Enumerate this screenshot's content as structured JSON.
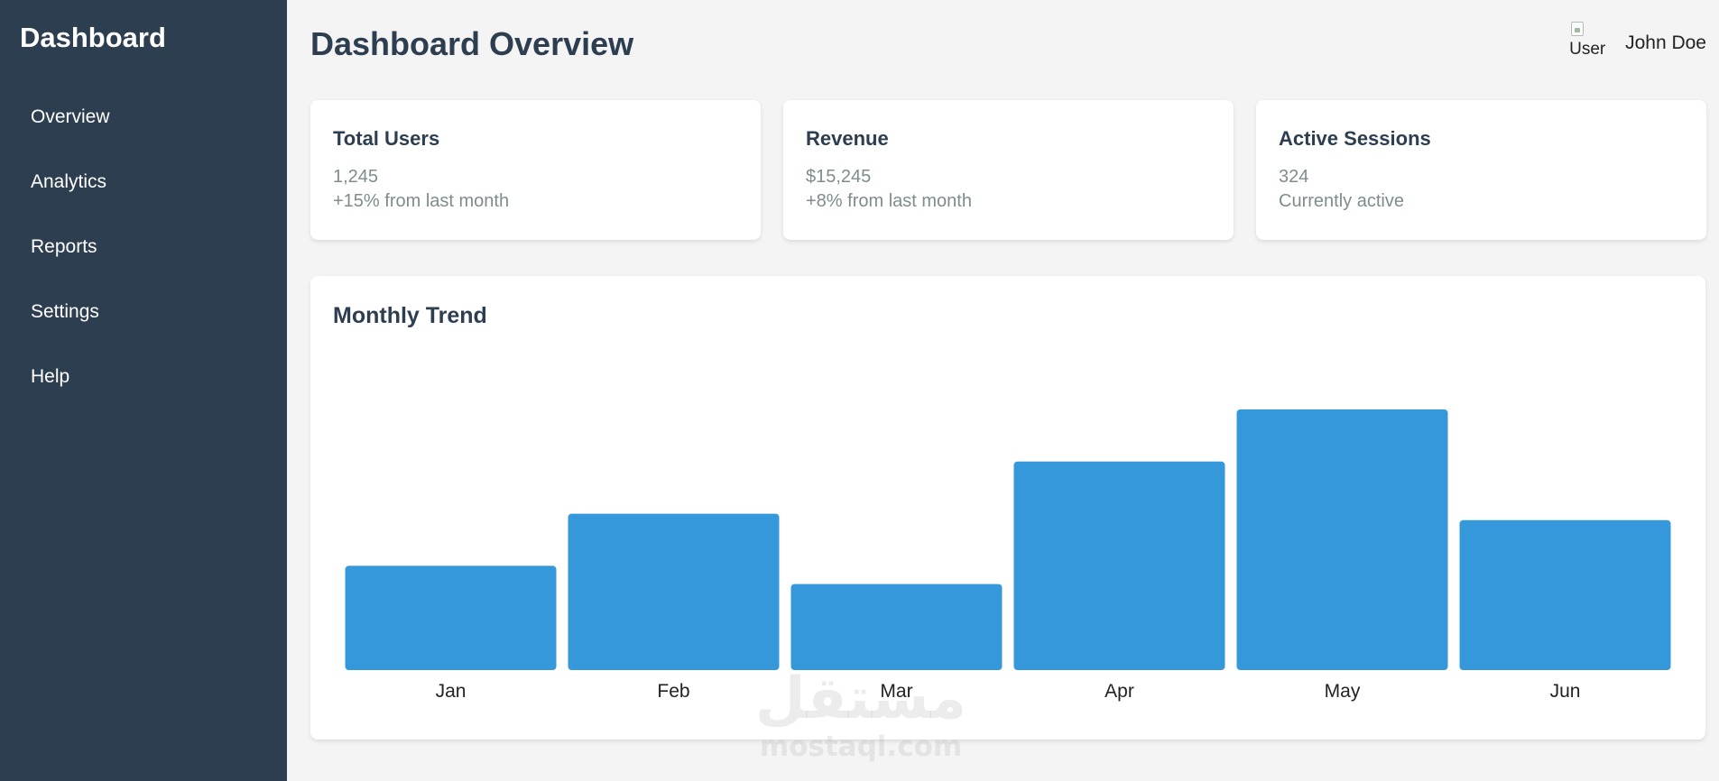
{
  "sidebar": {
    "brand": "Dashboard",
    "items": [
      {
        "label": "Overview"
      },
      {
        "label": "Analytics"
      },
      {
        "label": "Reports"
      },
      {
        "label": "Settings"
      },
      {
        "label": "Help"
      }
    ]
  },
  "header": {
    "title": "Dashboard Overview",
    "avatar_alt": "User",
    "user_name": "John Doe"
  },
  "stats": [
    {
      "title": "Total Users",
      "value": "1,245",
      "note": "+15% from last month"
    },
    {
      "title": "Revenue",
      "value": "$15,245",
      "note": "+8% from last month"
    },
    {
      "title": "Active Sessions",
      "value": "324",
      "note": "Currently active"
    }
  ],
  "chart_section": {
    "title": "Monthly Trend"
  },
  "chart_data": {
    "type": "bar",
    "title": "Monthly Trend",
    "categories": [
      "Jan",
      "Feb",
      "Mar",
      "Apr",
      "May",
      "Jun"
    ],
    "values": [
      40,
      60,
      33,
      80,
      100,
      57.5
    ],
    "ylim": [
      0,
      100
    ],
    "grid": false,
    "xlabel": "",
    "ylabel": "",
    "color": "#3498db"
  },
  "watermark": {
    "arabic": "مستقل",
    "latin": "mostaql.com"
  },
  "colors": {
    "sidebar_bg": "#2c3e50",
    "page_bg": "#f4f4f4",
    "accent": "#3498db",
    "muted_text": "#7f8c8d"
  }
}
